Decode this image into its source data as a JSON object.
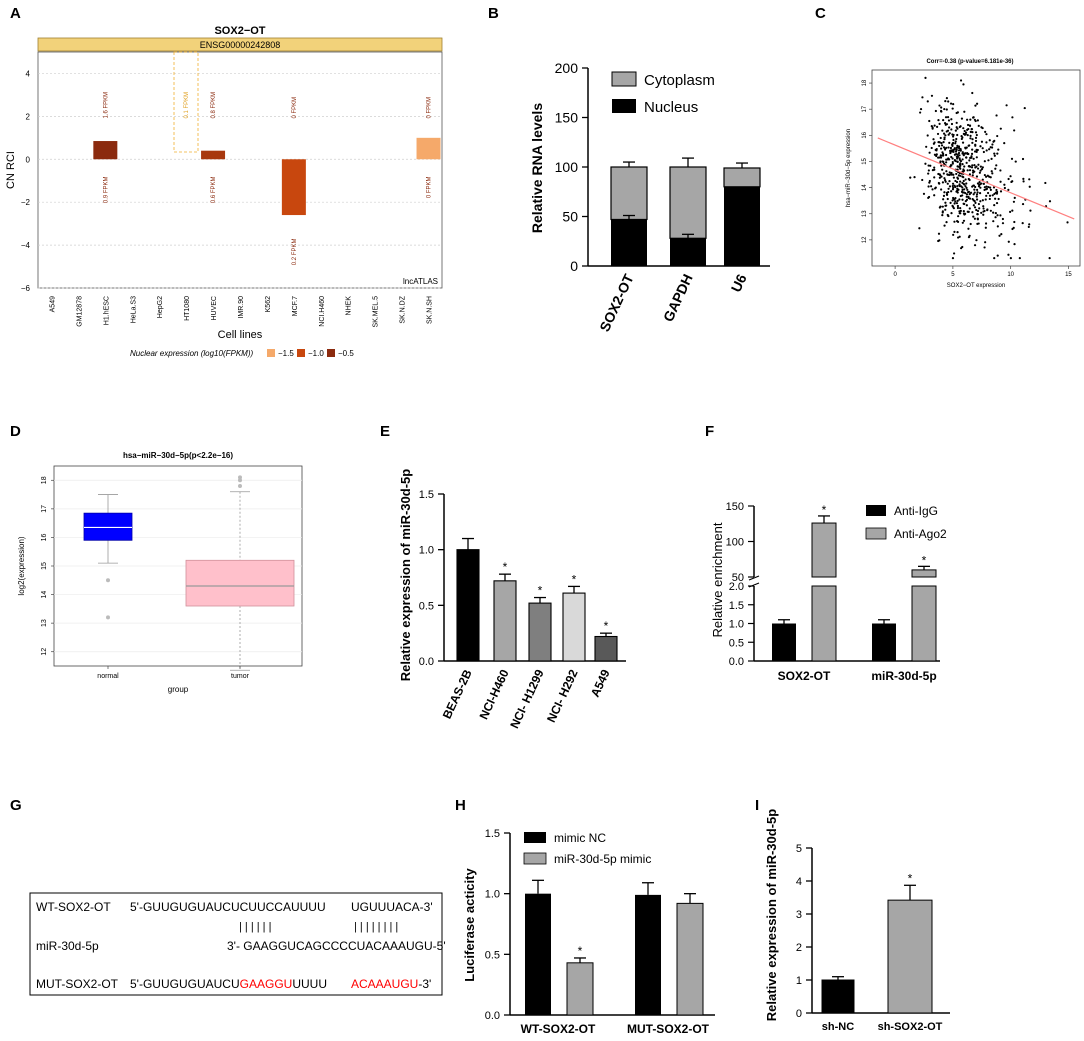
{
  "panel_labels": [
    "A",
    "B",
    "C",
    "D",
    "E",
    "F",
    "G",
    "H",
    "I"
  ],
  "colors": {
    "black": "#000000",
    "gray": "#a6a6a6",
    "light_gray": "#d9d9d9",
    "dark_gray": "#7f7f7f",
    "A_bar_dark": "#8b2a0e",
    "A_bar_mid": "#c8470e",
    "A_bar_light": "#f5a96a",
    "A_header": "#f2d27a",
    "D_normal": "#0000ff",
    "D_tumor": "#ffc0cb",
    "C_line": "#ff8080",
    "red": "#ff0000"
  },
  "chart_data": [
    {
      "id": "A",
      "type": "bar",
      "title": "SOX2−OT",
      "gene_id": "ENSG00000242808",
      "xlabel": "Cell lines",
      "ylabel": "CN RCI",
      "ylim": [
        -6,
        5
      ],
      "yticks": [
        "4",
        "2",
        "0",
        "−2",
        "−4",
        "−6"
      ],
      "categories": [
        "A549",
        "GM12878",
        "H1.hESC",
        "HeLa.S3",
        "HepG2",
        "HT1080",
        "HUVEC",
        "IMR.90",
        "K562",
        "MCF.7",
        "NCI.H460",
        "NHEK",
        "SK.MEL.5",
        "SK.N.DZ",
        "SK.N.SH"
      ],
      "values": [
        null,
        null,
        0.85,
        null,
        null,
        null,
        0.4,
        null,
        null,
        -2.6,
        null,
        null,
        null,
        null,
        1.0
      ],
      "bar_colors": [
        null,
        null,
        "#8b2a0e",
        null,
        null,
        null,
        "#a8380e",
        null,
        null,
        "#c8470e",
        null,
        null,
        null,
        null,
        "#f5a96a"
      ],
      "annotations_top": [
        {
          "col": 2,
          "text": "1.6 FPKM"
        },
        {
          "col": 5,
          "text": "0.1 FPKM"
        },
        {
          "col": 6,
          "text": "0.8 FPKM"
        },
        {
          "col": 9,
          "text": "0 FPKM"
        },
        {
          "col": 14,
          "text": "0 FPKM"
        }
      ],
      "annotations_bottom": [
        {
          "col": 2,
          "text": "0.9 FPKM"
        },
        {
          "col": 6,
          "text": "0.6 FPKM"
        },
        {
          "col": 9,
          "text": "0.2 FPKM"
        },
        {
          "col": 14,
          "text": "0 FPKM"
        }
      ],
      "source": "lncATLAS",
      "legend_title": "Nuclear expression (log10(FPKM))",
      "legend": [
        {
          "label": "−1.5",
          "color": "#f5a96a"
        },
        {
          "label": "−1.0",
          "color": "#c8470e"
        },
        {
          "label": "−0.5",
          "color": "#8b2a0e"
        }
      ]
    },
    {
      "id": "B",
      "type": "bar",
      "stacked": true,
      "ylabel": "Relative RNA levels",
      "ylim": [
        0,
        200
      ],
      "yticks": [
        "0",
        "50",
        "100",
        "150",
        "200"
      ],
      "categories": [
        "SOX2-OT",
        "GAPDH",
        "U6"
      ],
      "series": [
        {
          "name": "Nucleus",
          "values": [
            47,
            28,
            80
          ]
        },
        {
          "name": "Cytoplasm",
          "values": [
            53,
            72,
            19
          ]
        }
      ]
    },
    {
      "id": "C",
      "type": "scatter",
      "title": "Corr=-0.38 (p-value=6.181e-36)",
      "xlabel": "SOX2−OT expression",
      "ylabel": "hsa−miR−30d−5p expression",
      "xlim": [
        -2,
        16
      ],
      "ylim": [
        11,
        18.5
      ],
      "xticks": [
        "0",
        "5",
        "10",
        "15"
      ],
      "yticks": [
        "12",
        "13",
        "14",
        "15",
        "16",
        "17",
        "18"
      ],
      "n_points": 650,
      "center": [
        4.5,
        14.5
      ],
      "spread": [
        2.6,
        1.2
      ],
      "fit_line": {
        "x": [
          -1.5,
          15.5
        ],
        "y": [
          15.9,
          12.8
        ]
      }
    },
    {
      "id": "D",
      "type": "box",
      "title": "hsa−miR−30d−5p(p<2.2e−16)",
      "xlabel": "group",
      "ylabel": "log2(expression)",
      "ylim": [
        11.5,
        18.5
      ],
      "yticks": [
        "12",
        "13",
        "14",
        "15",
        "16",
        "17",
        "18"
      ],
      "categories": [
        "normal",
        "tumor"
      ],
      "boxes": [
        {
          "q1": 15.9,
          "median": 16.35,
          "q3": 16.85,
          "whisker_low": 15.1,
          "whisker_high": 17.5,
          "outliers": [
            14.5,
            13.2
          ]
        },
        {
          "q1": 13.6,
          "median": 14.3,
          "q3": 15.2,
          "whisker_low": 11.35,
          "whisker_high": 17.6,
          "outliers": [
            17.8,
            18.0,
            18.1
          ]
        }
      ]
    },
    {
      "id": "E",
      "type": "bar",
      "ylabel": "Relative expression of miR-30d-5p",
      "ylim": [
        0,
        1.5
      ],
      "yticks": [
        "0.0",
        "0.5",
        "1.0",
        "1.5"
      ],
      "categories": [
        "BEAS-2B",
        "NCI-H460",
        "NCI- H1299",
        "NCI- H292",
        "A549"
      ],
      "values": [
        1.0,
        0.72,
        0.52,
        0.61,
        0.22
      ],
      "errors": [
        0.1,
        0.06,
        0.05,
        0.06,
        0.03
      ],
      "significant": [
        false,
        true,
        true,
        true,
        true
      ],
      "bar_colors": [
        "#000000",
        "#a6a6a6",
        "#7f7f7f",
        "#d9d9d9",
        "#595959"
      ]
    },
    {
      "id": "F",
      "type": "bar",
      "broken_axis": true,
      "ylabel": "Relative enrichment",
      "yticks_lower": [
        "0.0",
        "0.5",
        "1.0",
        "1.5",
        "2.0"
      ],
      "yticks_upper": [
        "50",
        "100",
        "150"
      ],
      "categories": [
        "SOX2-OT",
        "miR-30d-5p"
      ],
      "series": [
        {
          "name": "Anti-IgG",
          "values": [
            1.0,
            1.0
          ],
          "errors": [
            0.1,
            0.1
          ]
        },
        {
          "name": "Anti-Ago2",
          "values": [
            126,
            60
          ],
          "errors": [
            10,
            5
          ]
        }
      ],
      "significant": [
        true,
        true
      ]
    },
    {
      "id": "H",
      "type": "bar",
      "ylabel": "Luciferase acticity",
      "ylim": [
        0,
        1.5
      ],
      "yticks": [
        "0.0",
        "0.5",
        "1.0",
        "1.5"
      ],
      "categories": [
        "WT-SOX2-OT",
        "MUT-SOX2-OT"
      ],
      "series": [
        {
          "name": "mimic NC",
          "values": [
            1.0,
            0.99
          ],
          "errors": [
            0.11,
            0.1
          ]
        },
        {
          "name": "miR-30d-5p mimic",
          "values": [
            0.43,
            0.92
          ],
          "errors": [
            0.04,
            0.08
          ]
        }
      ],
      "significant_label": "*"
    },
    {
      "id": "I",
      "type": "bar",
      "ylabel": "Relative expression of miR-30d-5p",
      "ylim": [
        0,
        5
      ],
      "yticks": [
        "0",
        "1",
        "2",
        "3",
        "4",
        "5"
      ],
      "categories": [
        "sh-NC",
        "sh-SOX2-OT"
      ],
      "values": [
        1.0,
        3.42
      ],
      "errors": [
        0.1,
        0.45
      ],
      "bar_colors": [
        "#000000",
        "#a6a6a6"
      ],
      "significant": [
        false,
        true
      ]
    }
  ],
  "panel_g": {
    "rows": [
      {
        "label": "WT-SOX2-OT",
        "parts": [
          {
            "text": "5'-GUUGUGUAUCUCUUCCAUUUU",
            "red": false
          },
          {
            "text": "         UGUUUACA-3'",
            "red": false
          }
        ]
      },
      {
        "label": "miR-30d-5p",
        "parts": [
          {
            "text": "        3'- GAAGGUCAGCCCCUACAAAUGU-5'",
            "red": false
          }
        ]
      },
      {
        "label": "MUT-SOX2-OT",
        "parts": [
          {
            "text": "5'-GUUGUGUAUCU",
            "red": false
          },
          {
            "text": "GAAGGU",
            "red": true
          },
          {
            "text": "UUUU          ",
            "red": false
          },
          {
            "text": "ACAAAUGU",
            "red": true
          },
          {
            "text": "-3'",
            "red": false
          }
        ]
      }
    ],
    "pairing_marks": "| | | | | |",
    "pairing_marks_2": "| | | | | | | |"
  }
}
